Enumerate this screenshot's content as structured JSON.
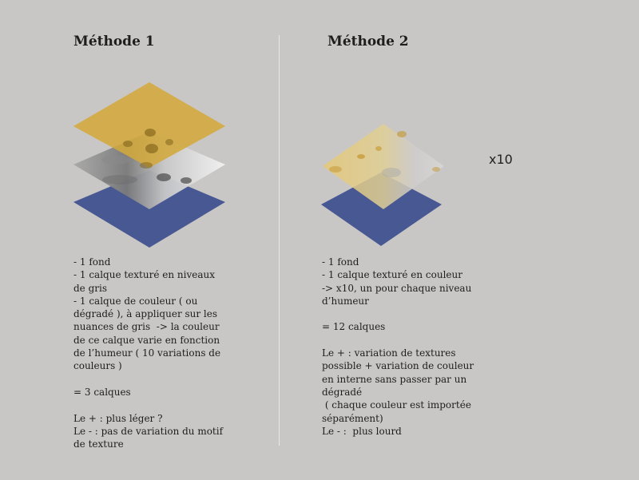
{
  "method1": {
    "title": "Méthode 1",
    "lines": [
      "- 1 fond",
      "- 1 calque texturé en niveaux",
      "de gris",
      "- 1 calque de couleur ( ou",
      "dégradé ), à appliquer sur les",
      "nuances de gris  -> la couleur",
      "de ce calque varie en fonction",
      "de l’humeur ( 10 variations de",
      "couleurs )",
      "",
      "= 3 calques",
      "",
      "Le + : plus léger ?",
      "Le - : pas de variation du motif",
      "de texture"
    ]
  },
  "method2": {
    "title": "Méthode 2",
    "multiplier": "x10",
    "lines": [
      "- 1 fond",
      "- 1 calque texturé en couleur",
      "-> x10, un pour chaque niveau",
      "d’humeur",
      "",
      "= 12 calques",
      "",
      "Le + : variation de textures",
      "possible + variation de couleur",
      "en interne sans passer par un",
      "dégradé",
      " ( chaque couleur est importée",
      "séparément)",
      "Le - :  plus lourd"
    ]
  },
  "colors": {
    "background": "#c9c7c5",
    "base_layer": "#485893",
    "color_layer": "#d3a93c",
    "gray_layer": "#cfcfcf"
  }
}
